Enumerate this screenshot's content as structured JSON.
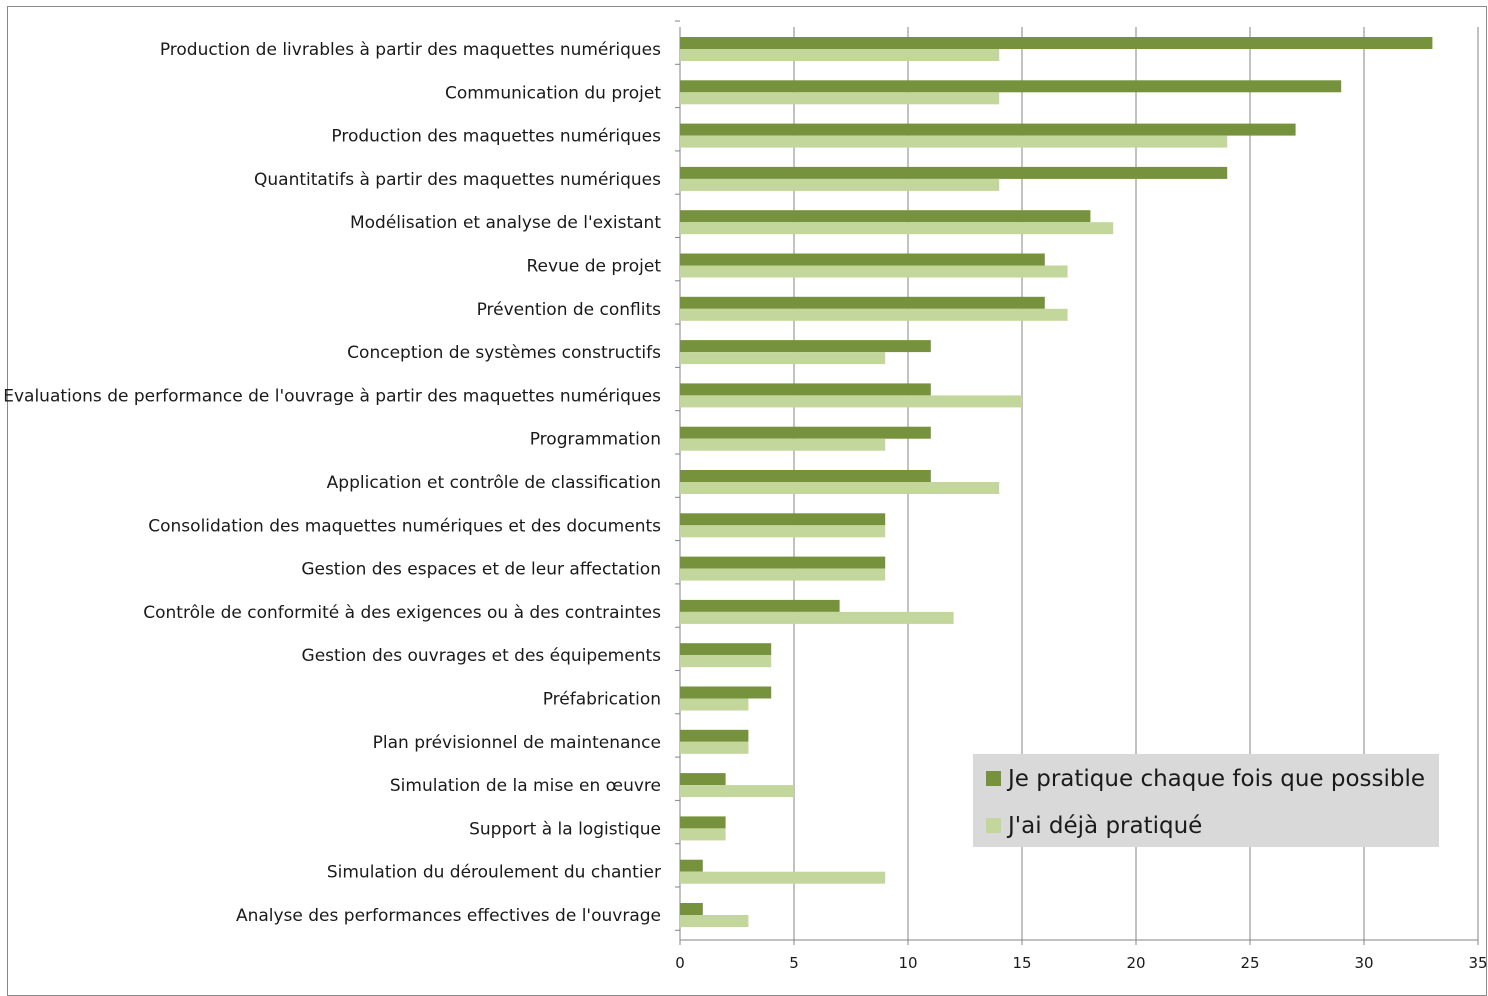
{
  "chart_data": {
    "type": "bar",
    "orientation": "horizontal",
    "title": "",
    "xlabel": "",
    "ylabel": "",
    "xlim": [
      0,
      35
    ],
    "xticks": [
      0,
      5,
      10,
      15,
      20,
      25,
      30,
      35
    ],
    "grid": "vertical",
    "legend_position": "bottom-right",
    "categories": [
      "Production de livrables à partir des maquettes numériques",
      "Communication du projet",
      "Production des maquettes numériques",
      "Quantitatifs à partir des maquettes numériques",
      "Modélisation et analyse de l'existant",
      "Revue de projet",
      "Prévention de conflits",
      "Conception de systèmes constructifs",
      "Evaluations de performance de l'ouvrage à partir des maquettes numériques",
      "Programmation",
      "Application et contrôle de classification",
      "Consolidation des maquettes numériques et des documents",
      "Gestion des espaces et de leur affectation",
      "Contrôle de conformité à des exigences ou à des contraintes",
      "Gestion des ouvrages et des équipements",
      "Préfabrication",
      "Plan prévisionnel de maintenance",
      "Simulation de la mise en œuvre",
      "Support à la logistique",
      "Simulation du déroulement du chantier",
      "Analyse des performances effectives de l'ouvrage"
    ],
    "series": [
      {
        "name": "Je pratique chaque fois que possible",
        "color": "#76923c",
        "values": [
          33,
          29,
          27,
          24,
          18,
          16,
          16,
          11,
          11,
          11,
          11,
          9,
          9,
          7,
          4,
          4,
          3,
          2,
          2,
          1,
          1
        ]
      },
      {
        "name": "J'ai déjà pratiqué",
        "color": "#c3d69b",
        "values": [
          14,
          14,
          24,
          14,
          19,
          17,
          17,
          9,
          15,
          9,
          14,
          9,
          9,
          12,
          4,
          3,
          3,
          5,
          2,
          9,
          3
        ]
      }
    ],
    "gridline_color": "#868686",
    "legend_background": "#d9d9d9"
  }
}
